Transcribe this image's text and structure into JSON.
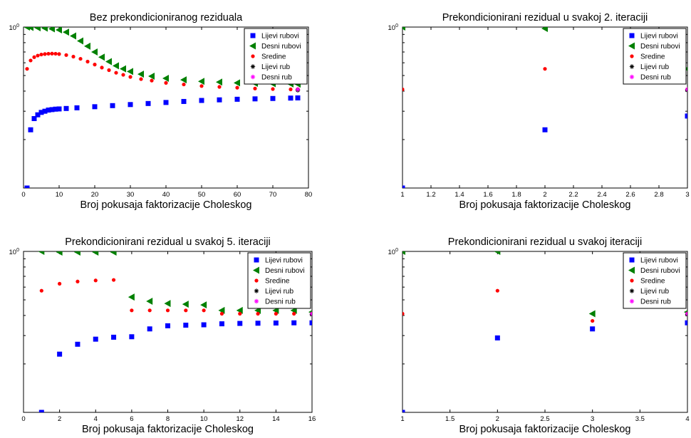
{
  "figure": {
    "background": "#ffffff",
    "colors": {
      "lijevi_rubovi": "#0000ff",
      "desni_rubovi": "#008000",
      "sredine": "#ff0000",
      "lijevi_rub": "#000000",
      "desni_rub": "#ff00ff"
    }
  },
  "chart_data": [
    {
      "type": "scatter",
      "title": "Bez prekondicioniranog reziduala",
      "xlabel": "Broj pokusaja faktorizacije Choleskog",
      "ylabel": "",
      "yscale": "log",
      "xlim": [
        0,
        80
      ],
      "ylim": [
        0.1,
        1
      ],
      "xticks": [
        "0",
        "10",
        "20",
        "30",
        "40",
        "50",
        "60",
        "70",
        "80"
      ],
      "ytick_label": {
        "base": "10",
        "exponent": "0"
      },
      "legend": {
        "placement": "top-right",
        "entries": [
          "Lijevi rubovi",
          "Desni rubovi",
          "Sredine",
          "Lijevi rub",
          "Desni rub"
        ]
      },
      "series": [
        {
          "name": "Lijevi rubovi",
          "marker": "square",
          "color": "#0000ff",
          "x": [
            1,
            2,
            3,
            4,
            5,
            6,
            7,
            8,
            9,
            10,
            12,
            15,
            20,
            25,
            30,
            35,
            40,
            45,
            50,
            55,
            60,
            65,
            70,
            75,
            77
          ],
          "y": [
            0.1,
            0.23,
            0.27,
            0.285,
            0.295,
            0.3,
            0.305,
            0.307,
            0.309,
            0.31,
            0.312,
            0.315,
            0.32,
            0.325,
            0.33,
            0.335,
            0.34,
            0.345,
            0.35,
            0.353,
            0.356,
            0.358,
            0.36,
            0.362,
            0.363
          ]
        },
        {
          "name": "Desni rubovi",
          "marker": "triangle-left",
          "color": "#008000",
          "x": [
            1,
            2,
            4,
            6,
            8,
            10,
            12,
            14,
            16,
            18,
            20,
            22,
            24,
            26,
            28,
            30,
            33,
            36,
            40,
            45,
            50,
            55,
            60,
            65,
            70,
            75,
            77
          ],
          "y": [
            1,
            0.995,
            0.99,
            0.985,
            0.975,
            0.96,
            0.93,
            0.88,
            0.82,
            0.76,
            0.7,
            0.65,
            0.61,
            0.575,
            0.55,
            0.53,
            0.51,
            0.495,
            0.48,
            0.47,
            0.46,
            0.455,
            0.45,
            0.447,
            0.445,
            0.443,
            0.442
          ]
        },
        {
          "name": "Sredine",
          "marker": "dot",
          "color": "#ff0000",
          "x": [
            1,
            2,
            3,
            4,
            5,
            6,
            7,
            8,
            9,
            10,
            12,
            14,
            16,
            18,
            20,
            22,
            24,
            26,
            28,
            30,
            33,
            36,
            40,
            45,
            50,
            55,
            60,
            65,
            70,
            75,
            77
          ],
          "y": [
            0.55,
            0.62,
            0.65,
            0.665,
            0.675,
            0.68,
            0.683,
            0.684,
            0.683,
            0.68,
            0.67,
            0.655,
            0.635,
            0.61,
            0.585,
            0.56,
            0.54,
            0.52,
            0.505,
            0.49,
            0.475,
            0.465,
            0.45,
            0.44,
            0.43,
            0.425,
            0.42,
            0.415,
            0.412,
            0.41,
            0.41
          ]
        },
        {
          "name": "Lijevi rub",
          "marker": "asterisk",
          "color": "#000000",
          "x": [
            77
          ],
          "y": [
            0.405
          ]
        },
        {
          "name": "Desni rub",
          "marker": "asterisk",
          "color": "#ff00ff",
          "x": [
            77
          ],
          "y": [
            0.41
          ]
        }
      ]
    },
    {
      "type": "scatter",
      "title": "Prekondicionirani rezidual u svakoj 2. iteraciji",
      "xlabel": "Broj pokusaja faktorizacije Choleskog",
      "ylabel": "",
      "yscale": "log",
      "xlim": [
        1,
        3
      ],
      "ylim": [
        0.1,
        1
      ],
      "xticks": [
        "1",
        "1.2",
        "1.4",
        "1.6",
        "1.8",
        "2",
        "2.2",
        "2.4",
        "2.6",
        "2.8",
        "3"
      ],
      "ytick_label": {
        "base": "10",
        "exponent": "0"
      },
      "legend": {
        "placement": "top-right",
        "entries": [
          "Lijevi rubovi",
          "Desni rubovi",
          "Sredine",
          "Lijevi rub",
          "Desni rub"
        ]
      },
      "series": [
        {
          "name": "Lijevi rubovi",
          "marker": "square",
          "color": "#0000ff",
          "x": [
            1,
            2,
            3
          ],
          "y": [
            0.1,
            0.23,
            0.28
          ]
        },
        {
          "name": "Desni rubovi",
          "marker": "triangle-left",
          "color": "#008000",
          "x": [
            1,
            2,
            3
          ],
          "y": [
            1,
            0.98,
            0.55
          ]
        },
        {
          "name": "Sredine",
          "marker": "dot",
          "color": "#ff0000",
          "x": [
            1,
            2,
            3
          ],
          "y": [
            0.41,
            0.55,
            0.41
          ]
        },
        {
          "name": "Lijevi rub",
          "marker": "asterisk",
          "color": "#000000",
          "x": [
            3
          ],
          "y": [
            0.405
          ]
        },
        {
          "name": "Desni rub",
          "marker": "asterisk",
          "color": "#ff00ff",
          "x": [
            3
          ],
          "y": [
            0.41
          ]
        }
      ]
    },
    {
      "type": "scatter",
      "title": "Prekondicionirani rezidual u svakoj 5. iteraciji",
      "xlabel": "Broj pokusaja faktorizacije Choleskog",
      "ylabel": "",
      "yscale": "log",
      "xlim": [
        0,
        16
      ],
      "ylim": [
        0.1,
        1
      ],
      "xticks": [
        "0",
        "2",
        "4",
        "6",
        "8",
        "10",
        "12",
        "14",
        "16"
      ],
      "ytick_label": {
        "base": "10",
        "exponent": "0"
      },
      "legend": {
        "placement": "top-right",
        "entries": [
          "Lijevi rubovi",
          "Desni rubovi",
          "Sredine",
          "Lijevi rub",
          "Desni rub"
        ]
      },
      "series": [
        {
          "name": "Lijevi rubovi",
          "marker": "square",
          "color": "#0000ff",
          "x": [
            1,
            2,
            3,
            4,
            5,
            6,
            7,
            8,
            9,
            10,
            11,
            12,
            13,
            14,
            15,
            16
          ],
          "y": [
            0.1,
            0.23,
            0.265,
            0.285,
            0.293,
            0.295,
            0.33,
            0.345,
            0.348,
            0.35,
            0.355,
            0.357,
            0.358,
            0.359,
            0.36,
            0.36
          ]
        },
        {
          "name": "Desni rubovi",
          "marker": "triangle-left",
          "color": "#008000",
          "x": [
            1,
            2,
            3,
            4,
            5,
            6,
            7,
            8,
            9,
            10,
            11,
            12,
            13,
            14,
            15,
            16
          ],
          "y": [
            1,
            0.99,
            0.99,
            0.99,
            0.99,
            0.52,
            0.49,
            0.475,
            0.47,
            0.465,
            0.43,
            0.43,
            0.43,
            0.43,
            0.43,
            0.42
          ]
        },
        {
          "name": "Sredine",
          "marker": "dot",
          "color": "#ff0000",
          "x": [
            1,
            2,
            3,
            4,
            5,
            6,
            7,
            8,
            9,
            10,
            11,
            12,
            13,
            14,
            15,
            16
          ],
          "y": [
            0.57,
            0.63,
            0.65,
            0.66,
            0.665,
            0.43,
            0.43,
            0.43,
            0.43,
            0.43,
            0.41,
            0.41,
            0.41,
            0.41,
            0.41,
            0.41
          ]
        },
        {
          "name": "Lijevi rub",
          "marker": "asterisk",
          "color": "#000000",
          "x": [
            16
          ],
          "y": [
            0.405
          ]
        },
        {
          "name": "Desni rub",
          "marker": "asterisk",
          "color": "#ff00ff",
          "x": [
            16
          ],
          "y": [
            0.41
          ]
        }
      ]
    },
    {
      "type": "scatter",
      "title": "Prekondicionirani rezidual u svakoj iteraciji",
      "xlabel": "Broj pokusaja faktorizacije Choleskog",
      "ylabel": "",
      "yscale": "log",
      "xlim": [
        1,
        4
      ],
      "ylim": [
        0.1,
        1
      ],
      "xticks": [
        "1",
        "1.5",
        "2",
        "2.5",
        "3",
        "3.5",
        "4"
      ],
      "ytick_label": {
        "base": "10",
        "exponent": "0"
      },
      "legend": {
        "placement": "top-right",
        "entries": [
          "Lijevi rubovi",
          "Desni rubovi",
          "Sredine",
          "Lijevi rub",
          "Desni rub"
        ]
      },
      "series": [
        {
          "name": "Lijevi rubovi",
          "marker": "square",
          "color": "#0000ff",
          "x": [
            1,
            2,
            3,
            4
          ],
          "y": [
            0.1,
            0.29,
            0.33,
            0.36
          ]
        },
        {
          "name": "Desni rubovi",
          "marker": "triangle-left",
          "color": "#008000",
          "x": [
            1,
            2,
            3,
            4
          ],
          "y": [
            1,
            1,
            0.41,
            0.42
          ]
        },
        {
          "name": "Sredine",
          "marker": "dot",
          "color": "#ff0000",
          "x": [
            1,
            2,
            3,
            4
          ],
          "y": [
            0.41,
            0.57,
            0.37,
            0.41
          ]
        },
        {
          "name": "Lijevi rub",
          "marker": "asterisk",
          "color": "#000000",
          "x": [
            4
          ],
          "y": [
            0.405
          ]
        },
        {
          "name": "Desni rub",
          "marker": "asterisk",
          "color": "#ff00ff",
          "x": [
            4
          ],
          "y": [
            0.41
          ]
        }
      ]
    }
  ]
}
